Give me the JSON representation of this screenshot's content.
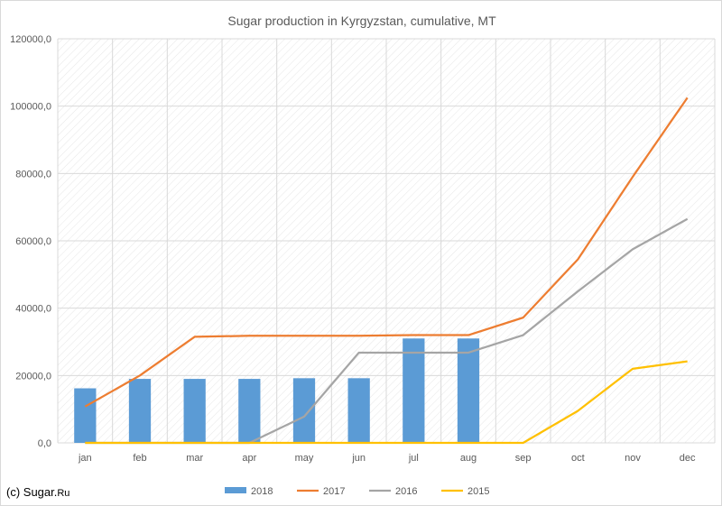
{
  "chart_data": {
    "type": "bar+line",
    "title": "Sugar production in Kyrgyzstan, cumulative, MT",
    "categories": [
      "jan",
      "feb",
      "mar",
      "apr",
      "may",
      "jun",
      "jul",
      "aug",
      "sep",
      "oct",
      "nov",
      "dec"
    ],
    "ylim": [
      0,
      120000
    ],
    "yticks": [
      "0,0",
      "20000,0",
      "40000,0",
      "60000,0",
      "80000,0",
      "100000,0",
      "120000,0"
    ],
    "ytick_values": [
      0,
      20000,
      40000,
      60000,
      80000,
      100000,
      120000
    ],
    "grid": true,
    "legend_position": "bottom",
    "series": [
      {
        "name": "2018",
        "kind": "bar",
        "color": "#5b9bd5",
        "values": [
          16200,
          19000,
          19000,
          19000,
          19200,
          19200,
          31000,
          31000,
          null,
          null,
          null,
          null
        ]
      },
      {
        "name": "2017",
        "kind": "line",
        "color": "#ed7d31",
        "values": [
          10800,
          20000,
          31500,
          31800,
          31800,
          31800,
          32000,
          32000,
          37200,
          54500,
          79000,
          102500
        ]
      },
      {
        "name": "2016",
        "kind": "line",
        "color": "#a5a5a5",
        "values": [
          0,
          0,
          0,
          0,
          7800,
          26800,
          26800,
          26800,
          32000,
          45000,
          57500,
          66500
        ]
      },
      {
        "name": "2015",
        "kind": "line",
        "color": "#ffc000",
        "values": [
          0,
          0,
          0,
          0,
          0,
          0,
          0,
          0,
          0,
          9500,
          22000,
          24200
        ]
      }
    ]
  },
  "credit": {
    "prefix": "(c) Sugar.",
    "suffix": "Ru"
  }
}
